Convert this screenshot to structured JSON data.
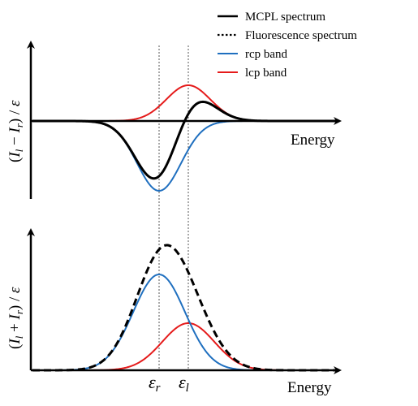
{
  "legend": [
    {
      "label": "MCPL spectrum",
      "style": "solid",
      "color": "#000000"
    },
    {
      "label": "Fluorescence spectrum",
      "style": "dotted",
      "color": "#000000"
    },
    {
      "label": "rcp band",
      "style": "solid",
      "color": "#1f6fbf"
    },
    {
      "label": "lcp band",
      "style": "solid",
      "color": "#e51b1b"
    }
  ],
  "top_panel": {
    "x_label": "Energy",
    "y_label_parts": {
      "open": "(",
      "a": "I",
      "a_sub": "l",
      "op": " − ",
      "b": "I",
      "b_sub": "r",
      "close": ") / ",
      "e": "ε"
    }
  },
  "bottom_panel": {
    "x_label": "Energy",
    "y_label_parts": {
      "open": "(",
      "a": "I",
      "a_sub": "l",
      "op": " + ",
      "b": "I",
      "b_sub": "r",
      "close": ") / ",
      "e": "ε"
    }
  },
  "markers": {
    "r": {
      "symbol": "ε",
      "sub": "r"
    },
    "l": {
      "symbol": "ε",
      "sub": "l"
    }
  },
  "colors": {
    "rcp": "#1f6fbf",
    "lcp": "#e51b1b",
    "mcpl": "#000000",
    "axis": "#000000",
    "guide": "#555555"
  }
}
